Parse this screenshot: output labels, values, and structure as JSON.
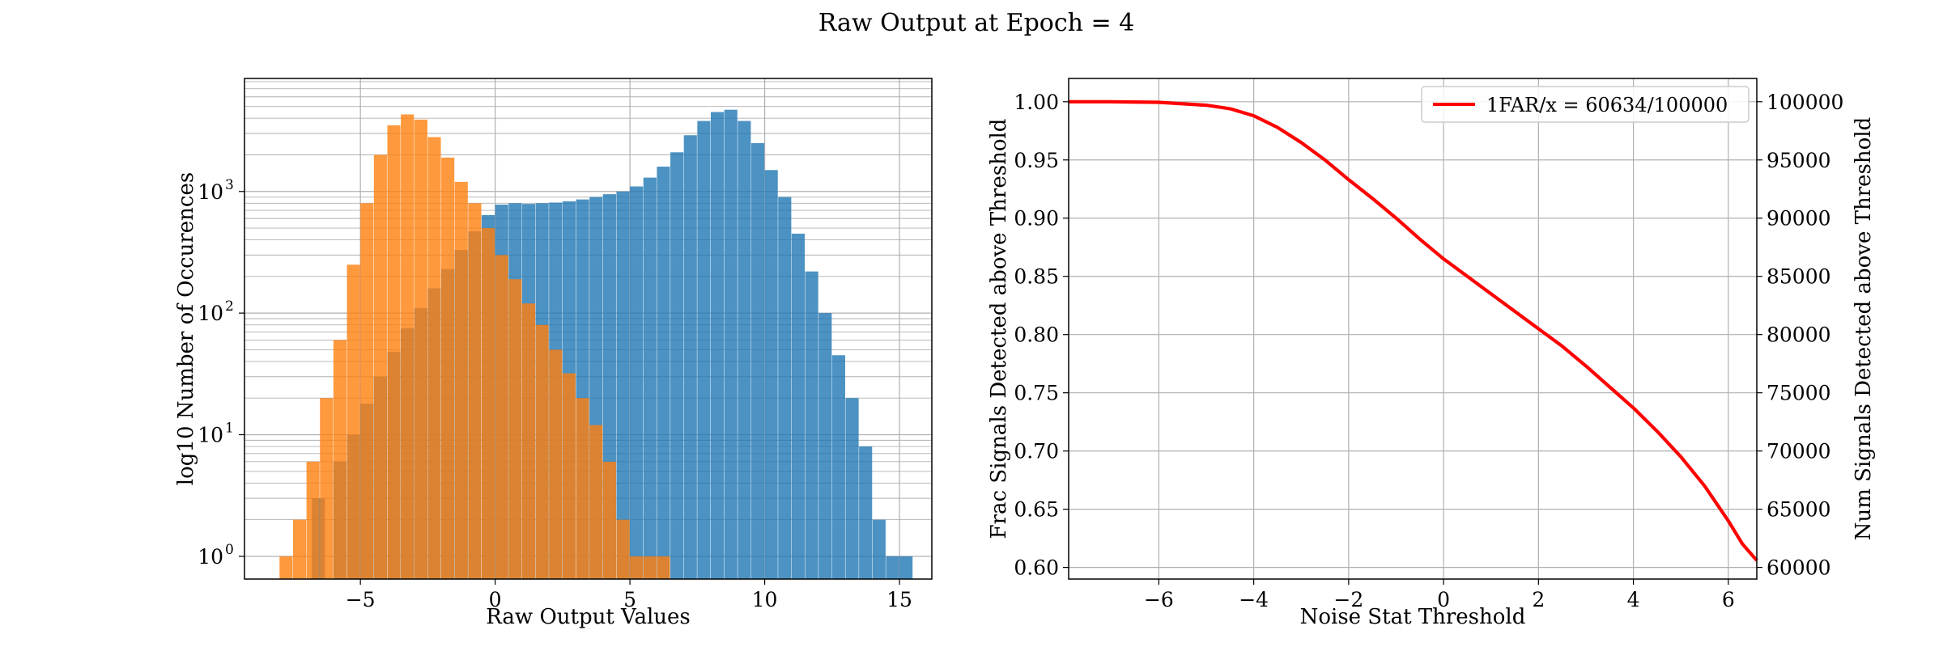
{
  "figure": {
    "title": "Raw Output at Epoch = 4"
  },
  "colors": {
    "blue": "#1f77b4",
    "orange": "#ff7f0e",
    "line": "#ff0000",
    "grid": "#b0b0b0"
  },
  "chart_data": [
    {
      "type": "histogram",
      "xlabel": "Raw Output Values",
      "ylabel": "log10 Number of Occurences",
      "yscale": "log",
      "xlim": [
        -9.3,
        16.2
      ],
      "ylim": [
        0.65,
        8500
      ],
      "xticks": [
        -5,
        0,
        5,
        10,
        15
      ],
      "xtick_labels": [
        "−5",
        "0",
        "5",
        "10",
        "15"
      ],
      "yticks": [
        1,
        10,
        100,
        1000
      ],
      "ytick_labels": [
        "10",
        "10",
        "10",
        "10"
      ],
      "ytick_exponents": [
        "0",
        "1",
        "2",
        "3"
      ],
      "grid": true,
      "series": [
        {
          "color": "blue",
          "bins": [
            [
              -6.8,
              3
            ],
            [
              -6.0,
              6
            ],
            [
              -5.5,
              10
            ],
            [
              -5.0,
              18
            ],
            [
              -4.5,
              30
            ],
            [
              -4.0,
              48
            ],
            [
              -3.5,
              75
            ],
            [
              -3.0,
              110
            ],
            [
              -2.5,
              160
            ],
            [
              -2.0,
              230
            ],
            [
              -1.5,
              330
            ],
            [
              -1.0,
              470
            ],
            [
              -0.5,
              640
            ],
            [
              0.0,
              780
            ],
            [
              0.5,
              800
            ],
            [
              1.0,
              790
            ],
            [
              1.5,
              800
            ],
            [
              2.0,
              810
            ],
            [
              2.5,
              830
            ],
            [
              3.0,
              860
            ],
            [
              3.5,
              900
            ],
            [
              4.0,
              950
            ],
            [
              4.5,
              1000
            ],
            [
              5.0,
              1100
            ],
            [
              5.5,
              1300
            ],
            [
              6.0,
              1600
            ],
            [
              6.5,
              2100
            ],
            [
              7.0,
              2900
            ],
            [
              7.5,
              3800
            ],
            [
              8.0,
              4500
            ],
            [
              8.5,
              4700
            ],
            [
              9.0,
              3800
            ],
            [
              9.5,
              2500
            ],
            [
              10.0,
              1500
            ],
            [
              10.5,
              900
            ],
            [
              11.0,
              450
            ],
            [
              11.5,
              220
            ],
            [
              12.0,
              100
            ],
            [
              12.5,
              45
            ],
            [
              13.0,
              20
            ],
            [
              13.5,
              8
            ],
            [
              14.0,
              2
            ],
            [
              14.5,
              1
            ],
            [
              15.0,
              1
            ]
          ]
        },
        {
          "color": "orange",
          "bins": [
            [
              -8.0,
              1
            ],
            [
              -7.5,
              2
            ],
            [
              -7.0,
              6
            ],
            [
              -6.5,
              20
            ],
            [
              -6.0,
              60
            ],
            [
              -5.5,
              250
            ],
            [
              -5.0,
              800
            ],
            [
              -4.5,
              2000
            ],
            [
              -4.0,
              3500
            ],
            [
              -3.5,
              4300
            ],
            [
              -3.0,
              3900
            ],
            [
              -2.5,
              2800
            ],
            [
              -2.0,
              1900
            ],
            [
              -1.5,
              1200
            ],
            [
              -1.0,
              800
            ],
            [
              -0.5,
              500
            ],
            [
              0.0,
              300
            ],
            [
              0.5,
              190
            ],
            [
              1.0,
              120
            ],
            [
              1.5,
              80
            ],
            [
              2.0,
              50
            ],
            [
              2.5,
              32
            ],
            [
              3.0,
              20
            ],
            [
              3.5,
              12
            ],
            [
              4.0,
              6
            ],
            [
              4.5,
              2
            ],
            [
              5.0,
              1
            ],
            [
              5.5,
              1
            ],
            [
              6.0,
              1
            ]
          ]
        }
      ]
    },
    {
      "type": "line",
      "xlabel": "Noise Stat Threshold",
      "ylabel": "Frac Signals Detected above Threshold",
      "ylabel_right": "Num Signals Detected above Threshold",
      "xlim": [
        -7.9,
        6.6
      ],
      "ylim": [
        0.59,
        1.02
      ],
      "ylim_right": [
        59000,
        102000
      ],
      "xticks": [
        -6,
        -4,
        -2,
        0,
        2,
        4,
        6
      ],
      "xtick_labels": [
        "−6",
        "−4",
        "−2",
        "0",
        "2",
        "4",
        "6"
      ],
      "yticks": [
        0.6,
        0.65,
        0.7,
        0.75,
        0.8,
        0.85,
        0.9,
        0.95,
        1.0
      ],
      "ytick_labels": [
        "0.60",
        "0.65",
        "0.70",
        "0.75",
        "0.80",
        "0.85",
        "0.90",
        "0.95",
        "1.00"
      ],
      "yticks_right": [
        60000,
        65000,
        70000,
        75000,
        80000,
        85000,
        90000,
        95000,
        100000
      ],
      "ytick_labels_right": [
        "60000",
        "65000",
        "70000",
        "75000",
        "80000",
        "85000",
        "90000",
        "95000",
        "100000"
      ],
      "grid": true,
      "legend_position": "top-right",
      "series": [
        {
          "name": "1FAR/x = 60634/100000",
          "color": "line",
          "x": [
            -7.9,
            -7,
            -6,
            -5,
            -4.5,
            -4,
            -3.5,
            -3,
            -2.5,
            -2,
            -1.5,
            -1,
            -0.5,
            0,
            0.5,
            1,
            1.5,
            2,
            2.5,
            3,
            3.5,
            4,
            4.5,
            5,
            5.5,
            6,
            6.3,
            6.6
          ],
          "y": [
            1.0,
            1.0,
            0.9995,
            0.997,
            0.994,
            0.988,
            0.978,
            0.965,
            0.95,
            0.933,
            0.917,
            0.9,
            0.882,
            0.865,
            0.85,
            0.835,
            0.82,
            0.805,
            0.79,
            0.773,
            0.755,
            0.737,
            0.717,
            0.695,
            0.67,
            0.64,
            0.62,
            0.606
          ]
        }
      ]
    }
  ]
}
